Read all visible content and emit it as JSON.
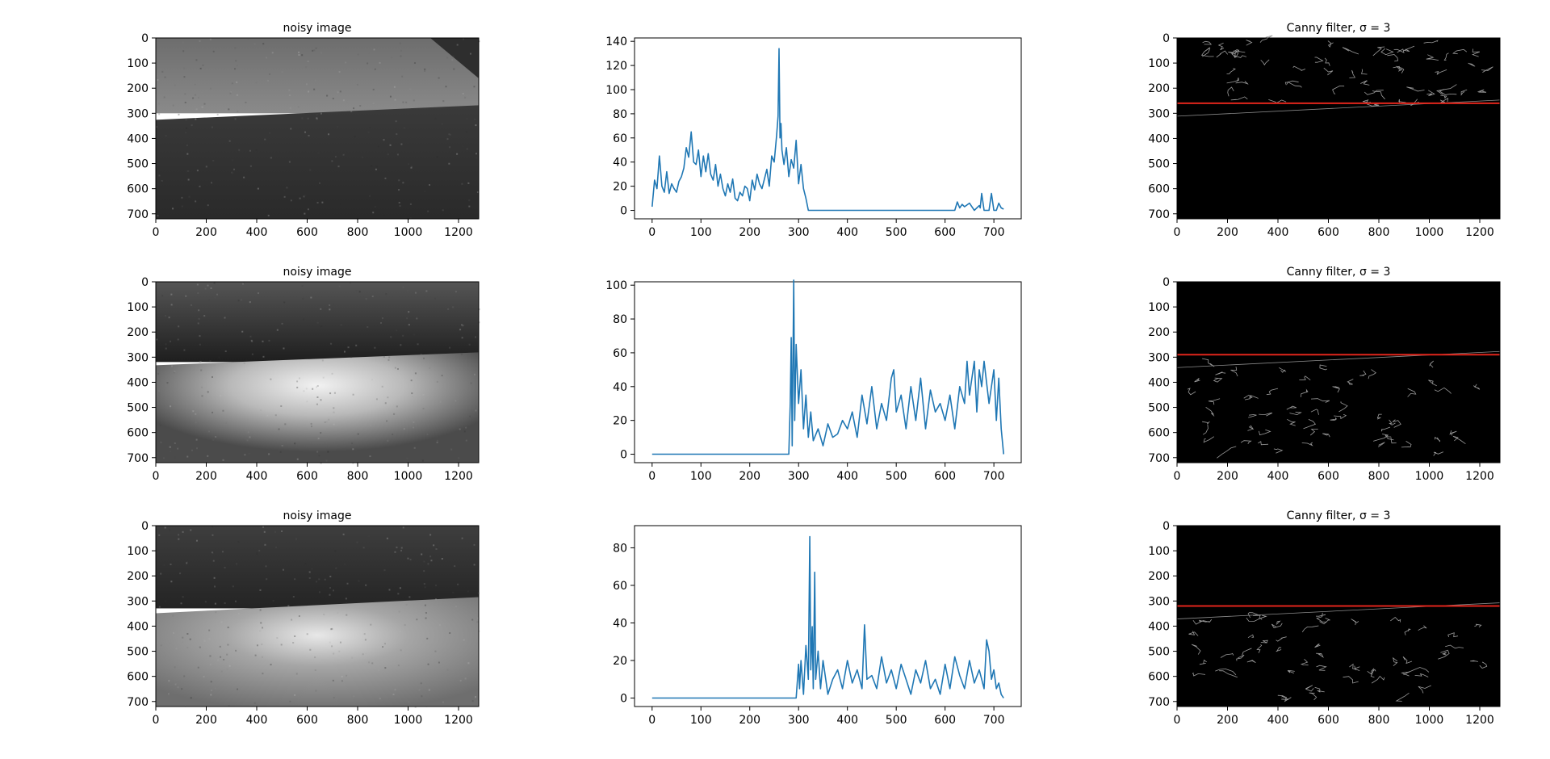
{
  "figure": {
    "image_title": "noisy image",
    "canny_title_prefix": "Canny filter, ",
    "canny_title_math": "σ = 3",
    "line_color": "#1f77b4",
    "canny_line_color": "#e0251b"
  },
  "chart_data": [
    {
      "type": "image",
      "title": "noisy image",
      "xlim": [
        0,
        1280
      ],
      "ylim": [
        720,
        0
      ],
      "xticks": [
        0,
        200,
        400,
        600,
        800,
        1000,
        1200
      ],
      "yticks": [
        0,
        100,
        200,
        300,
        400,
        500,
        600,
        700
      ],
      "horizon_y": 300,
      "description": "grayscale river scene: rocky bank above, dark water below"
    },
    {
      "type": "line",
      "xlim": [
        0,
        720
      ],
      "ylim": [
        0,
        140
      ],
      "xticks": [
        0,
        100,
        200,
        300,
        400,
        500,
        600,
        700
      ],
      "yticks": [
        0,
        20,
        40,
        60,
        80,
        100,
        120,
        140
      ],
      "series": [
        {
          "x": [
            0,
            5,
            10,
            15,
            20,
            25,
            30,
            35,
            40,
            45,
            50,
            55,
            60,
            65,
            70,
            75,
            80,
            85,
            90,
            95,
            100,
            105,
            110,
            115,
            120,
            125,
            130,
            135,
            140,
            145,
            150,
            155,
            160,
            165,
            170,
            175,
            180,
            185,
            190,
            195,
            200,
            205,
            210,
            215,
            220,
            225,
            230,
            235,
            240,
            245,
            250,
            255,
            258,
            260,
            262,
            264,
            266,
            270,
            275,
            280,
            285,
            290,
            295,
            300,
            305,
            310,
            315,
            320,
            400,
            500,
            600,
            620,
            625,
            630,
            635,
            640,
            650,
            660,
            670,
            672,
            675,
            680,
            690,
            695,
            700,
            705,
            710,
            715,
            720
          ],
          "y": [
            3,
            25,
            18,
            45,
            20,
            15,
            32,
            14,
            22,
            18,
            15,
            24,
            28,
            35,
            52,
            44,
            65,
            40,
            38,
            50,
            28,
            45,
            32,
            47,
            30,
            25,
            38,
            20,
            30,
            18,
            12,
            22,
            15,
            26,
            10,
            8,
            15,
            12,
            20,
            18,
            8,
            25,
            17,
            30,
            22,
            18,
            26,
            34,
            20,
            45,
            40,
            62,
            78,
            134,
            60,
            72,
            50,
            38,
            52,
            28,
            42,
            35,
            58,
            22,
            38,
            18,
            10,
            0,
            0,
            0,
            0,
            0,
            7,
            2,
            5,
            3,
            6,
            0,
            4,
            2,
            14,
            0,
            0,
            14,
            0,
            0,
            6,
            2,
            1
          ]
        }
      ]
    },
    {
      "type": "image",
      "title": "Canny filter, σ = 3",
      "xlim": [
        0,
        1280
      ],
      "ylim": [
        720,
        0
      ],
      "xticks": [
        0,
        200,
        400,
        600,
        800,
        1000,
        1200
      ],
      "yticks": [
        0,
        100,
        200,
        300,
        400,
        500,
        600,
        700
      ],
      "red_line_y": 260
    },
    {
      "type": "image",
      "title": "noisy image",
      "xlim": [
        0,
        1280
      ],
      "ylim": [
        720,
        0
      ],
      "xticks": [
        0,
        200,
        400,
        600,
        800,
        1000,
        1200
      ],
      "yticks": [
        0,
        100,
        200,
        300,
        400,
        500,
        600,
        700
      ],
      "horizon_y": 300,
      "description": "grayscale river scene with bright sun glare on water"
    },
    {
      "type": "line",
      "xlim": [
        0,
        720
      ],
      "ylim": [
        0,
        100
      ],
      "xticks": [
        0,
        100,
        200,
        300,
        400,
        500,
        600,
        700
      ],
      "yticks": [
        0,
        20,
        40,
        60,
        80,
        100
      ],
      "series": [
        {
          "x": [
            0,
            100,
            200,
            280,
            283,
            285,
            287,
            290,
            292,
            295,
            300,
            305,
            310,
            315,
            320,
            325,
            330,
            340,
            350,
            360,
            370,
            380,
            390,
            400,
            410,
            420,
            430,
            440,
            450,
            460,
            470,
            480,
            490,
            495,
            500,
            510,
            520,
            530,
            540,
            550,
            560,
            570,
            580,
            590,
            600,
            610,
            620,
            630,
            640,
            645,
            650,
            660,
            665,
            670,
            675,
            680,
            690,
            700,
            705,
            710,
            715,
            720
          ],
          "y": [
            0,
            0,
            0,
            0,
            30,
            69,
            5,
            103,
            20,
            65,
            30,
            50,
            15,
            35,
            10,
            25,
            8,
            15,
            5,
            18,
            10,
            12,
            20,
            15,
            25,
            10,
            35,
            18,
            40,
            15,
            30,
            20,
            45,
            50,
            25,
            35,
            15,
            40,
            20,
            45,
            15,
            38,
            25,
            30,
            20,
            35,
            15,
            40,
            30,
            55,
            35,
            55,
            25,
            50,
            40,
            55,
            30,
            50,
            20,
            45,
            15,
            0
          ]
        }
      ]
    },
    {
      "type": "image",
      "title": "Canny filter, σ = 3",
      "xlim": [
        0,
        1280
      ],
      "ylim": [
        720,
        0
      ],
      "xticks": [
        0,
        200,
        400,
        600,
        800,
        1000,
        1200
      ],
      "yticks": [
        0,
        100,
        200,
        300,
        400,
        500,
        600,
        700
      ],
      "red_line_y": 290
    },
    {
      "type": "image",
      "title": "noisy image",
      "xlim": [
        0,
        1280
      ],
      "ylim": [
        720,
        0
      ],
      "xticks": [
        0,
        200,
        400,
        600,
        800,
        1000,
        1200
      ],
      "yticks": [
        0,
        100,
        200,
        300,
        400,
        500,
        600,
        700
      ],
      "horizon_y": 310,
      "description": "grayscale river scene with soft glare on water"
    },
    {
      "type": "line",
      "xlim": [
        0,
        720
      ],
      "ylim": [
        0,
        90
      ],
      "xticks": [
        0,
        100,
        200,
        300,
        400,
        500,
        600,
        700
      ],
      "yticks": [
        0,
        20,
        40,
        60,
        80
      ],
      "series": [
        {
          "x": [
            0,
            100,
            200,
            295,
            300,
            302,
            305,
            310,
            315,
            320,
            323,
            325,
            328,
            330,
            333,
            335,
            340,
            345,
            350,
            360,
            370,
            380,
            390,
            400,
            410,
            420,
            430,
            435,
            440,
            450,
            460,
            470,
            480,
            490,
            500,
            510,
            520,
            530,
            540,
            550,
            560,
            570,
            580,
            590,
            600,
            610,
            620,
            630,
            640,
            650,
            660,
            670,
            680,
            685,
            690,
            695,
            700,
            705,
            710,
            715,
            720
          ],
          "y": [
            0,
            0,
            0,
            0,
            18,
            5,
            20,
            2,
            28,
            10,
            86,
            15,
            38,
            5,
            67,
            10,
            25,
            5,
            20,
            2,
            10,
            15,
            5,
            20,
            8,
            15,
            5,
            39,
            10,
            12,
            5,
            22,
            8,
            15,
            5,
            18,
            10,
            2,
            15,
            8,
            20,
            5,
            10,
            2,
            18,
            5,
            22,
            12,
            5,
            20,
            8,
            15,
            5,
            31,
            25,
            10,
            15,
            5,
            8,
            2,
            0
          ]
        }
      ]
    },
    {
      "type": "image",
      "title": "Canny filter, σ = 3",
      "xlim": [
        0,
        1280
      ],
      "ylim": [
        720,
        0
      ],
      "xticks": [
        0,
        200,
        400,
        600,
        800,
        1000,
        1200
      ],
      "yticks": [
        0,
        100,
        200,
        300,
        400,
        500,
        600,
        700
      ],
      "red_line_y": 320
    }
  ]
}
